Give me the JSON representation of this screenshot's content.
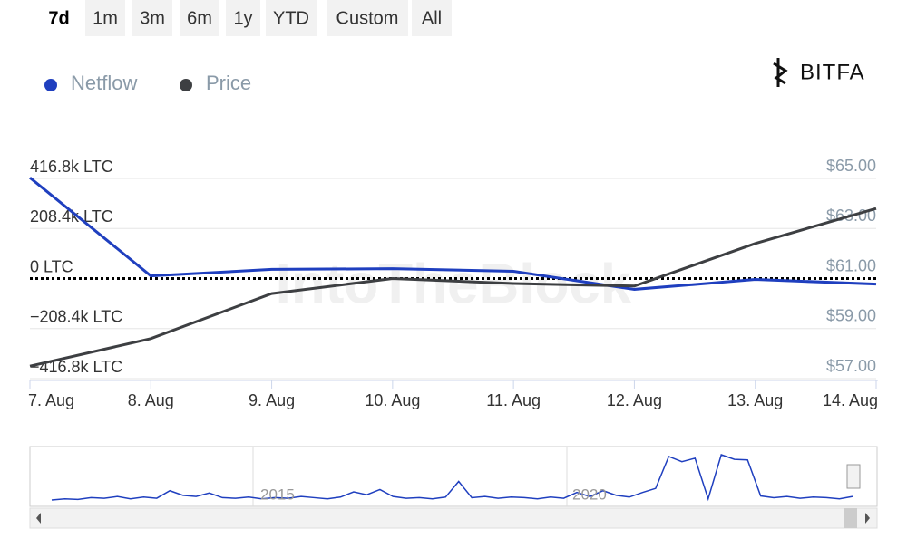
{
  "range_selector": {
    "buttons": [
      "7d",
      "1m",
      "3m",
      "6m",
      "1y",
      "YTD",
      "Custom",
      "All"
    ],
    "active": 0
  },
  "logo": "BITFA",
  "watermark": "IntoTheBlock",
  "chart_data": {
    "type": "line",
    "categories": [
      "7. Aug",
      "8. Aug",
      "9. Aug",
      "10. Aug",
      "11. Aug",
      "12. Aug",
      "13. Aug",
      "14. Aug"
    ],
    "series": [
      {
        "name": "Netflow",
        "color": "#1f3fbf",
        "axis": "y",
        "values": [
          420000,
          11000,
          38000,
          41000,
          30000,
          -45000,
          -4000,
          -23000
        ]
      },
      {
        "name": "Price",
        "color": "#3d3f42",
        "axis": "y2",
        "values": [
          57.5,
          58.6,
          60.4,
          61.0,
          60.8,
          60.7,
          62.4,
          63.8
        ]
      }
    ],
    "ylim": [
      -416800,
      416800
    ],
    "yticks": [
      {
        "value": 416800,
        "label": "416.8k LTC"
      },
      {
        "value": 208400,
        "label": "208.4k LTC"
      },
      {
        "value": 0,
        "label": "0 LTC"
      },
      {
        "value": -208400,
        "label": "−208.4k LTC"
      },
      {
        "value": -416800,
        "label": "−416.8k LTC"
      }
    ],
    "y2lim": [
      57,
      65
    ],
    "y2ticks": [
      {
        "value": 65,
        "label": "$65.00"
      },
      {
        "value": 63,
        "label": "$63.00"
      },
      {
        "value": 61,
        "label": "$61.00"
      },
      {
        "value": 59,
        "label": "$59.00"
      },
      {
        "value": 57,
        "label": "$57.00"
      }
    ],
    "grid": true,
    "legend": "top-left"
  },
  "navigator": {
    "labels": [
      "2015",
      "2020"
    ],
    "values": [
      1,
      1.2,
      1.1,
      1.4,
      1.3,
      1.6,
      1.2,
      1.5,
      1.3,
      2.6,
      1.8,
      1.6,
      2.2,
      1.4,
      1.3,
      1.5,
      1.2,
      1.4,
      1.3,
      1.6,
      1.4,
      1.2,
      1.5,
      2.4,
      1.9,
      2.8,
      1.6,
      1.3,
      1.4,
      1.2,
      1.5,
      4.2,
      1.4,
      1.6,
      1.3,
      1.5,
      1.4,
      1.2,
      1.5,
      1.3,
      2.3,
      1.6,
      2.6,
      1.8,
      1.5,
      2.3,
      3.0,
      8.5,
      7.6,
      8.2,
      1.2,
      8.8,
      8.0,
      7.9,
      1.7,
      1.4,
      1.6,
      1.3,
      1.5,
      1.4,
      1.2,
      1.6
    ]
  }
}
